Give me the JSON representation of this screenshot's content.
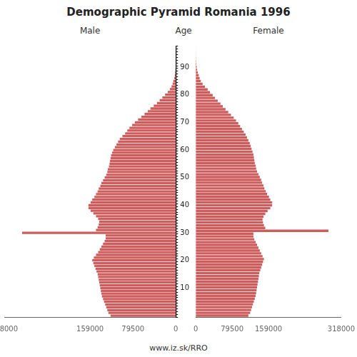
{
  "chart_data": {
    "type": "bar",
    "orientation": "horizontal",
    "title": "Demographic Pyramid Romania 1996",
    "ylabel": "Age",
    "annotations": [
      "www.iz.sk/RRO"
    ],
    "categories": [
      null,
      null,
      null,
      null,
      null,
      null,
      null,
      null,
      null,
      null,
      "10",
      null,
      null,
      null,
      null,
      null,
      null,
      null,
      null,
      null,
      "20",
      null,
      null,
      null,
      null,
      null,
      null,
      null,
      null,
      null,
      "30",
      null,
      null,
      null,
      null,
      null,
      null,
      null,
      null,
      null,
      "40",
      null,
      null,
      null,
      null,
      null,
      null,
      null,
      null,
      null,
      "50",
      null,
      null,
      null,
      null,
      null,
      null,
      null,
      null,
      null,
      "60",
      null,
      null,
      null,
      null,
      null,
      null,
      null,
      null,
      null,
      "70",
      null,
      null,
      null,
      null,
      null,
      null,
      null,
      null,
      null,
      "80",
      null,
      null,
      null,
      null,
      null,
      null,
      null,
      null,
      null,
      "90",
      null,
      null,
      null,
      null,
      null,
      null,
      null
    ],
    "series": [
      {
        "name": "Male",
        "color": "#CD5C5C",
        "values": [
          121000,
          125000,
          127000,
          129000,
          131000,
          133000,
          135000,
          137000,
          138000,
          139000,
          140000,
          141000,
          142000,
          143000,
          144000,
          145000,
          147000,
          149000,
          151000,
          153000,
          155000,
          152000,
          148000,
          144000,
          141000,
          138000,
          135000,
          132000,
          130000,
          130000,
          285000,
          148000,
          145000,
          143000,
          142000,
          144000,
          148000,
          153000,
          158000,
          162000,
          162000,
          158000,
          155000,
          151000,
          148000,
          145000,
          143000,
          140000,
          138000,
          135000,
          132000,
          129000,
          127000,
          126000,
          124000,
          123000,
          122000,
          121000,
          120000,
          118000,
          116000,
          113000,
          110000,
          107000,
          104000,
          99000,
          94000,
          90000,
          86000,
          81000,
          76000,
          70000,
          64000,
          58000,
          52000,
          47000,
          41000,
          35000,
          30000,
          25000,
          20000,
          15000,
          11000,
          8000,
          6000,
          4500,
          3000,
          2000,
          1300,
          800,
          500,
          300,
          180,
          100,
          60,
          35,
          20,
          10
        ]
      },
      {
        "name": "Female",
        "color": "#CD5C5C",
        "values": [
          115000,
          119000,
          121000,
          123000,
          125000,
          127000,
          129000,
          131000,
          132000,
          133000,
          134000,
          135000,
          136000,
          137000,
          138000,
          139000,
          141000,
          143000,
          145000,
          147000,
          149000,
          146000,
          143000,
          140000,
          137000,
          134000,
          131000,
          128000,
          126000,
          126000,
          290000,
          152000,
          149000,
          147000,
          146000,
          148000,
          152000,
          157000,
          163000,
          167000,
          167000,
          163000,
          160000,
          156000,
          153000,
          150000,
          148000,
          145000,
          143000,
          140000,
          137000,
          134000,
          132000,
          131000,
          129000,
          128000,
          127000,
          126000,
          124000,
          122000,
          120000,
          118000,
          115000,
          112000,
          109000,
          105000,
          101000,
          97000,
          93000,
          88000,
          83000,
          77000,
          71000,
          65000,
          59000,
          54000,
          48000,
          42000,
          37000,
          31000,
          26000,
          20000,
          15000,
          11000,
          8500,
          6500,
          4500,
          3000,
          2000,
          1200,
          750,
          400,
          220,
          130,
          75,
          40,
          22,
          12
        ]
      }
    ],
    "xlim": [
      0,
      318000
    ],
    "xticks": [
      0,
      79500,
      159000,
      318000
    ],
    "grid": false
  }
}
